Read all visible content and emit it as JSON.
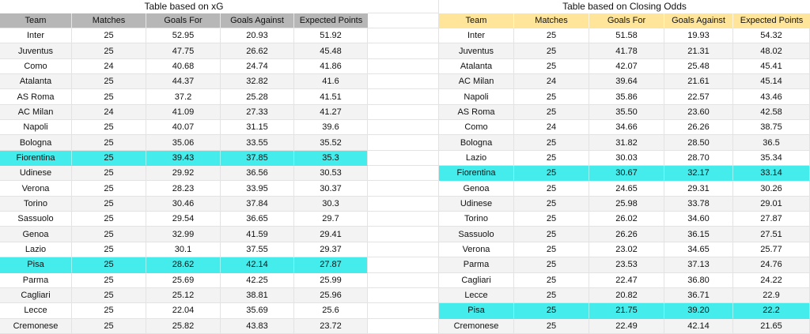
{
  "colors": {
    "header_gray": "#b7b7b7",
    "header_yellow": "#ffe599",
    "highlight_cyan": "#45ecec",
    "row_stripe": "#f3f3f3",
    "gridline": "#e3e3e3"
  },
  "tables": [
    {
      "title": "Table based on xG",
      "header_color": "#b7b7b7",
      "columns": [
        "Team",
        "Matches",
        "Goals For",
        "Goals Against",
        "Expected Points"
      ],
      "rows": [
        {
          "cells": [
            "Inter",
            "25",
            "52.95",
            "20.93",
            "51.92"
          ],
          "highlight": false
        },
        {
          "cells": [
            "Juventus",
            "25",
            "47.75",
            "26.62",
            "45.48"
          ],
          "highlight": false
        },
        {
          "cells": [
            "Como",
            "24",
            "40.68",
            "24.74",
            "41.86"
          ],
          "highlight": false
        },
        {
          "cells": [
            "Atalanta",
            "25",
            "44.37",
            "32.82",
            "41.6"
          ],
          "highlight": false
        },
        {
          "cells": [
            "AS Roma",
            "25",
            "37.2",
            "25.28",
            "41.51"
          ],
          "highlight": false
        },
        {
          "cells": [
            "AC Milan",
            "24",
            "41.09",
            "27.33",
            "41.27"
          ],
          "highlight": false
        },
        {
          "cells": [
            "Napoli",
            "25",
            "40.07",
            "31.15",
            "39.6"
          ],
          "highlight": false
        },
        {
          "cells": [
            "Bologna",
            "25",
            "35.06",
            "33.55",
            "35.52"
          ],
          "highlight": false
        },
        {
          "cells": [
            "Fiorentina",
            "25",
            "39.43",
            "37.85",
            "35.3"
          ],
          "highlight": true
        },
        {
          "cells": [
            "Udinese",
            "25",
            "29.92",
            "36.56",
            "30.53"
          ],
          "highlight": false
        },
        {
          "cells": [
            "Verona",
            "25",
            "28.23",
            "33.95",
            "30.37"
          ],
          "highlight": false
        },
        {
          "cells": [
            "Torino",
            "25",
            "30.46",
            "37.84",
            "30.3"
          ],
          "highlight": false
        },
        {
          "cells": [
            "Sassuolo",
            "25",
            "29.54",
            "36.65",
            "29.7"
          ],
          "highlight": false
        },
        {
          "cells": [
            "Genoa",
            "25",
            "32.99",
            "41.59",
            "29.41"
          ],
          "highlight": false
        },
        {
          "cells": [
            "Lazio",
            "25",
            "30.1",
            "37.55",
            "29.37"
          ],
          "highlight": false
        },
        {
          "cells": [
            "Pisa",
            "25",
            "28.62",
            "42.14",
            "27.87"
          ],
          "highlight": true
        },
        {
          "cells": [
            "Parma",
            "25",
            "25.69",
            "42.25",
            "25.99"
          ],
          "highlight": false
        },
        {
          "cells": [
            "Cagliari",
            "25",
            "25.12",
            "38.81",
            "25.96"
          ],
          "highlight": false
        },
        {
          "cells": [
            "Lecce",
            "25",
            "22.04",
            "35.69",
            "25.6"
          ],
          "highlight": false
        },
        {
          "cells": [
            "Cremonese",
            "25",
            "25.82",
            "43.83",
            "23.72"
          ],
          "highlight": false
        }
      ]
    },
    {
      "title": "Table based on Closing Odds",
      "header_color": "#ffe599",
      "columns": [
        "Team",
        "Matches",
        "Goals For",
        "Goals Against",
        "Expected Points"
      ],
      "rows": [
        {
          "cells": [
            "Inter",
            "25",
            "51.58",
            "19.93",
            "54.32"
          ],
          "highlight": false
        },
        {
          "cells": [
            "Juventus",
            "25",
            "41.78",
            "21.31",
            "48.02"
          ],
          "highlight": false
        },
        {
          "cells": [
            "Atalanta",
            "25",
            "42.07",
            "25.48",
            "45.41"
          ],
          "highlight": false
        },
        {
          "cells": [
            "AC Milan",
            "24",
            "39.64",
            "21.61",
            "45.14"
          ],
          "highlight": false
        },
        {
          "cells": [
            "Napoli",
            "25",
            "35.86",
            "22.57",
            "43.46"
          ],
          "highlight": false
        },
        {
          "cells": [
            "AS Roma",
            "25",
            "35.50",
            "23.60",
            "42.58"
          ],
          "highlight": false
        },
        {
          "cells": [
            "Como",
            "24",
            "34.66",
            "26.26",
            "38.75"
          ],
          "highlight": false
        },
        {
          "cells": [
            "Bologna",
            "25",
            "31.82",
            "28.50",
            "36.5"
          ],
          "highlight": false
        },
        {
          "cells": [
            "Lazio",
            "25",
            "30.03",
            "28.70",
            "35.34"
          ],
          "highlight": false
        },
        {
          "cells": [
            "Fiorentina",
            "25",
            "30.67",
            "32.17",
            "33.14"
          ],
          "highlight": true
        },
        {
          "cells": [
            "Genoa",
            "25",
            "24.65",
            "29.31",
            "30.26"
          ],
          "highlight": false
        },
        {
          "cells": [
            "Udinese",
            "25",
            "25.98",
            "33.78",
            "29.01"
          ],
          "highlight": false
        },
        {
          "cells": [
            "Torino",
            "25",
            "26.02",
            "34.60",
            "27.87"
          ],
          "highlight": false
        },
        {
          "cells": [
            "Sassuolo",
            "25",
            "26.26",
            "36.15",
            "27.51"
          ],
          "highlight": false
        },
        {
          "cells": [
            "Verona",
            "25",
            "23.02",
            "34.65",
            "25.77"
          ],
          "highlight": false
        },
        {
          "cells": [
            "Parma",
            "25",
            "23.53",
            "37.13",
            "24.76"
          ],
          "highlight": false
        },
        {
          "cells": [
            "Cagliari",
            "25",
            "22.47",
            "36.80",
            "24.22"
          ],
          "highlight": false
        },
        {
          "cells": [
            "Lecce",
            "25",
            "20.82",
            "36.71",
            "22.9"
          ],
          "highlight": false
        },
        {
          "cells": [
            "Pisa",
            "25",
            "21.75",
            "39.20",
            "22.2"
          ],
          "highlight": true
        },
        {
          "cells": [
            "Cremonese",
            "25",
            "22.49",
            "42.14",
            "21.65"
          ],
          "highlight": false
        }
      ]
    }
  ]
}
